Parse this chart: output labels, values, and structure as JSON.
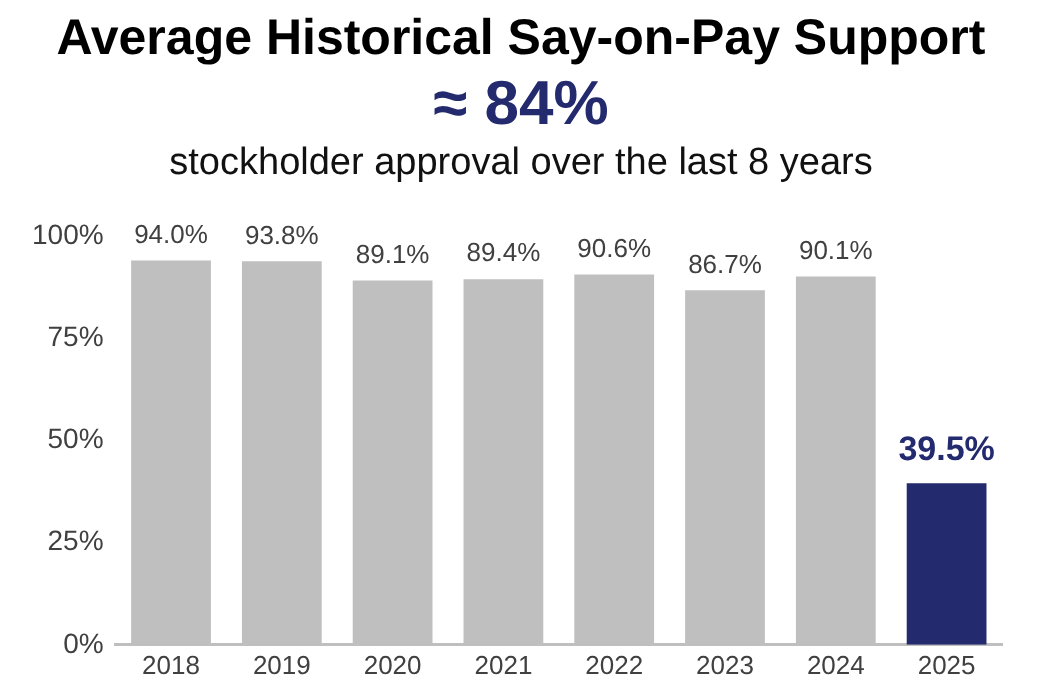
{
  "chart_data": {
    "type": "bar",
    "title": "Average Historical Say-on-Pay Support",
    "subtitle": "≈ 84%",
    "annotations": [
      "stockholder approval over the last 8 years"
    ],
    "categories": [
      "2018",
      "2019",
      "2020",
      "2021",
      "2022",
      "2023",
      "2024",
      "2025"
    ],
    "values": [
      94.0,
      93.8,
      89.1,
      89.4,
      90.6,
      86.7,
      90.1,
      39.5
    ],
    "colors": [
      "#bfbfbf",
      "#bfbfbf",
      "#bfbfbf",
      "#bfbfbf",
      "#bfbfbf",
      "#bfbfbf",
      "#bfbfbf",
      "#232a6e"
    ],
    "value_labels": [
      "94.0%",
      "93.8%",
      "89.1%",
      "89.4%",
      "90.6%",
      "86.7%",
      "90.1%",
      "39.5%"
    ],
    "ylim": [
      0,
      100
    ],
    "yticks": [
      {
        "value": 0,
        "label": "0%"
      },
      {
        "value": 25,
        "label": "25%"
      },
      {
        "value": 50,
        "label": "50%"
      },
      {
        "value": 75,
        "label": "75%"
      },
      {
        "value": 100,
        "label": "100%"
      }
    ],
    "grid": false,
    "legend": false
  }
}
